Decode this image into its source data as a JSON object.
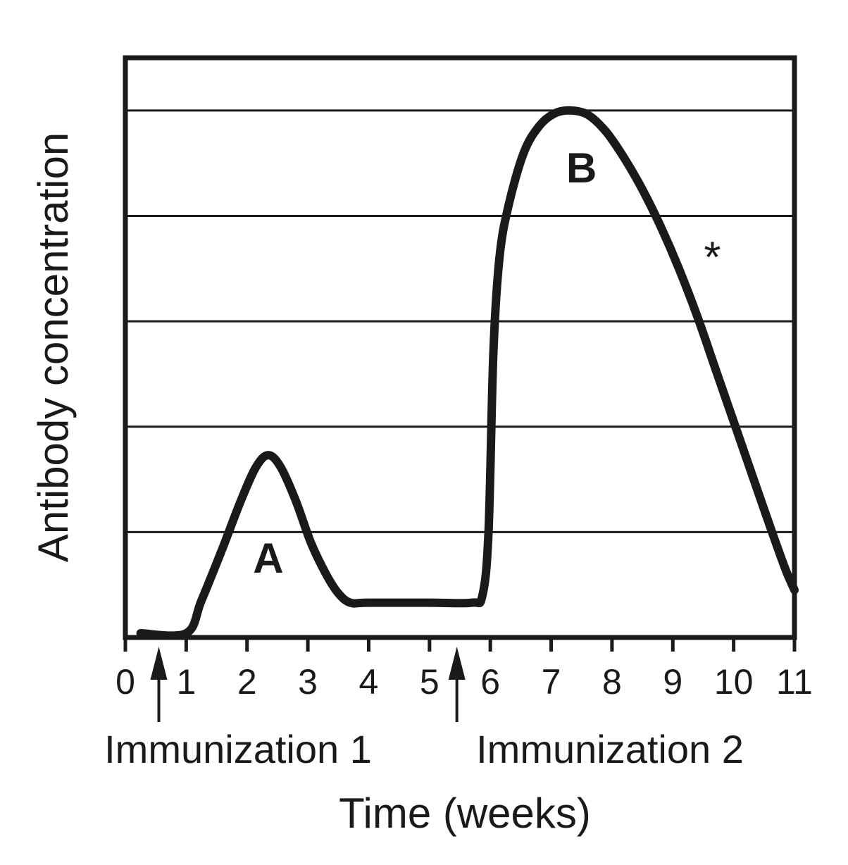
{
  "chart_data": {
    "type": "line",
    "title": "",
    "xlabel": "Time (weeks)",
    "ylabel": "Antibody concentration",
    "xlim": [
      0,
      11
    ],
    "ylim": [
      0,
      5.5
    ],
    "x_ticks": [
      "0",
      "1",
      "2",
      "3",
      "4",
      "5",
      "6",
      "7",
      "8",
      "9",
      "10",
      "11"
    ],
    "grid": "horizontal",
    "series": [
      {
        "points": [
          [
            0.25,
            0.04
          ],
          [
            1.0,
            0.04
          ],
          [
            1.25,
            0.35
          ],
          [
            1.6,
            0.85
          ],
          [
            1.9,
            1.3
          ],
          [
            2.15,
            1.62
          ],
          [
            2.35,
            1.73
          ],
          [
            2.55,
            1.62
          ],
          [
            2.8,
            1.3
          ],
          [
            3.05,
            0.9
          ],
          [
            3.3,
            0.6
          ],
          [
            3.5,
            0.42
          ],
          [
            3.7,
            0.33
          ],
          [
            4.0,
            0.33
          ],
          [
            5.0,
            0.33
          ],
          [
            5.7,
            0.33
          ],
          [
            5.87,
            0.4
          ],
          [
            5.97,
            1.0
          ],
          [
            6.05,
            2.7
          ],
          [
            6.15,
            3.6
          ],
          [
            6.3,
            4.1
          ],
          [
            6.55,
            4.6
          ],
          [
            6.8,
            4.85
          ],
          [
            7.05,
            4.97
          ],
          [
            7.3,
            5.0
          ],
          [
            7.6,
            4.96
          ],
          [
            7.9,
            4.8
          ],
          [
            8.2,
            4.55
          ],
          [
            8.5,
            4.25
          ],
          [
            8.8,
            3.9
          ],
          [
            9.1,
            3.5
          ],
          [
            9.4,
            3.05
          ],
          [
            9.7,
            2.55
          ],
          [
            10.0,
            2.05
          ],
          [
            10.3,
            1.55
          ],
          [
            10.6,
            1.05
          ],
          [
            10.85,
            0.65
          ],
          [
            11.0,
            0.45
          ]
        ]
      }
    ],
    "annotations": [
      {
        "text": "A",
        "x": 2.35,
        "y": 0.75
      },
      {
        "text": "B",
        "x": 7.5,
        "y": 4.45
      },
      {
        "text": "*",
        "x": 9.65,
        "y": 3.6
      }
    ],
    "markers": [
      {
        "label": "Immunization 1",
        "x": 0.55
      },
      {
        "label": "Immunization 2",
        "x": 5.45
      }
    ]
  }
}
